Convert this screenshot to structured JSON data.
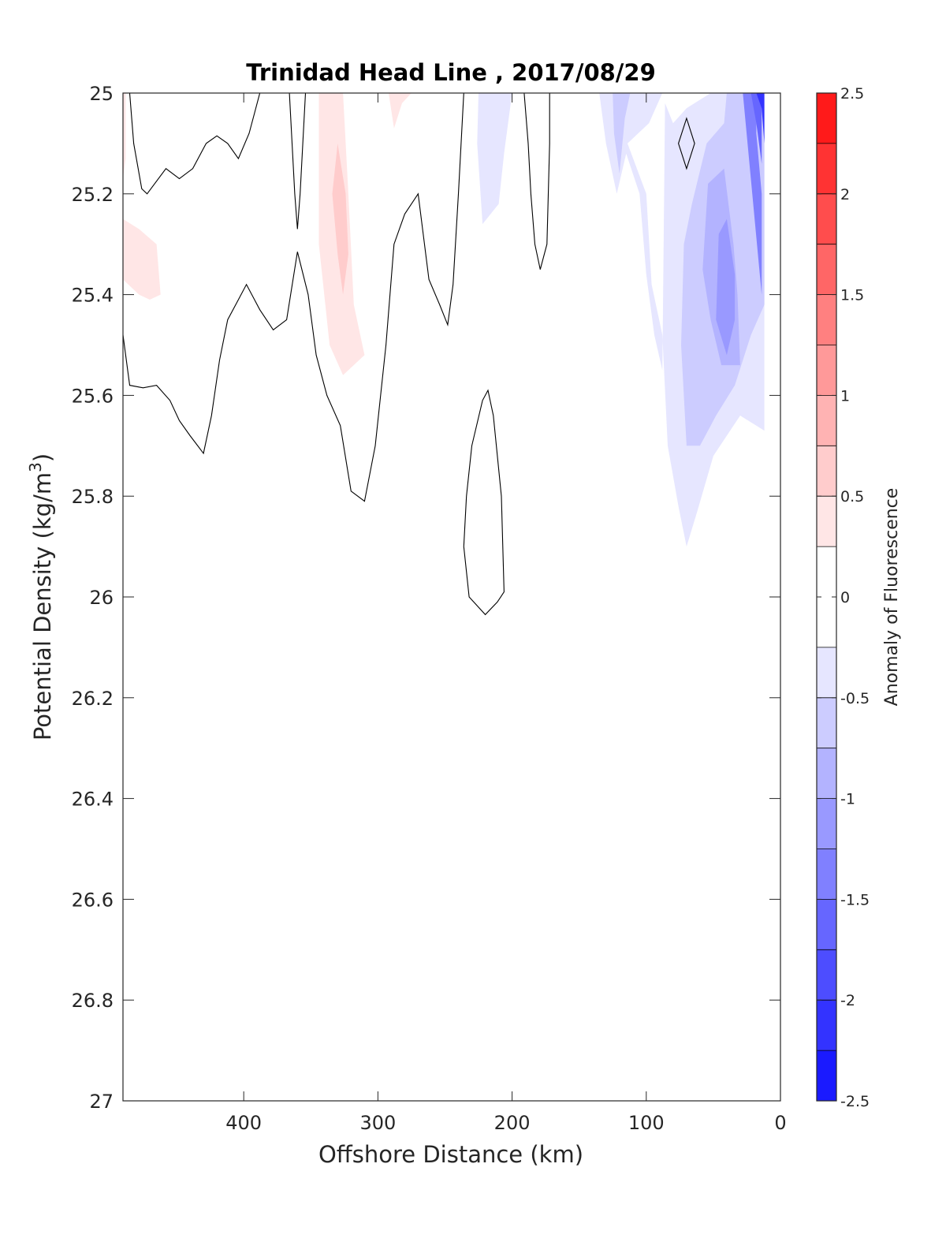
{
  "chart_data": {
    "type": "contour",
    "title": "Trinidad Head Line , 2017/08/29",
    "xlabel": "Offshore Distance (km)",
    "ylabel": "Potential Density (kg/m",
    "ylabel_sup": "3",
    "ylabel_close": ")",
    "colorbar_label": "Anomaly of Fluorescence",
    "xlim": [
      490,
      0
    ],
    "ylim": [
      25,
      27
    ],
    "x_reversed": true,
    "y_reversed": true,
    "xticks": [
      400,
      300,
      200,
      100,
      0
    ],
    "yticks": [
      25,
      25.2,
      25.4,
      25.6,
      25.8,
      26,
      26.2,
      26.4,
      26.6,
      26.8,
      27
    ],
    "ytick_labels": [
      "25",
      "25.2",
      "25.4",
      "25.6",
      "25.8",
      "26",
      "26.2",
      "26.4",
      "26.6",
      "26.8",
      "27"
    ],
    "colorbar": {
      "range": [
        -2.5,
        2.5
      ],
      "levels": [
        -2.5,
        -2.25,
        -2,
        -1.75,
        -1.5,
        -1.25,
        -1,
        -0.75,
        -0.5,
        -0.25,
        0.25,
        0.5,
        0.75,
        1,
        1.25,
        1.5,
        1.75,
        2,
        2.25,
        2.5
      ],
      "ticks": [
        2.5,
        2,
        1.5,
        1,
        0.5,
        0,
        -0.5,
        -1,
        -1.5,
        -2,
        -2.5
      ],
      "tick_labels": [
        "2.5",
        "2",
        "1.5",
        "1",
        "0.5",
        "0",
        "-0.5",
        "-1",
        "-1.5",
        "-2",
        "-2.5"
      ],
      "colors": [
        "#0000ff",
        "#1a1aff",
        "#3333ff",
        "#4d4dff",
        "#6666ff",
        "#8080ff",
        "#9999ff",
        "#b3b3ff",
        "#ccccff",
        "#e6e6ff",
        "#ffffff",
        "#ffe6e6",
        "#ffcccc",
        "#ffb3b3",
        "#ff9999",
        "#ff8080",
        "#ff6666",
        "#ff4d4d",
        "#ff3333",
        "#ff1a1a",
        "#ff0000"
      ]
    },
    "filled_regions": [
      {
        "level": 0.25,
        "color": "#ffe6e6",
        "points": [
          [
            490,
            25
          ],
          [
            488,
            25
          ],
          [
            488,
            25.13
          ],
          [
            490,
            25.17
          ]
        ]
      },
      {
        "level": 0.25,
        "color": "#ffe6e6",
        "points": [
          [
            490,
            25.25
          ],
          [
            478,
            25.27
          ],
          [
            465,
            25.3
          ],
          [
            462,
            25.4
          ],
          [
            470,
            25.41
          ],
          [
            478,
            25.4
          ],
          [
            490,
            25.37
          ]
        ]
      },
      {
        "level": 0.25,
        "color": "#ffe6e6",
        "points": [
          [
            344,
            25
          ],
          [
            326,
            25
          ],
          [
            322,
            25.2
          ],
          [
            318,
            25.42
          ],
          [
            310,
            25.52
          ],
          [
            326,
            25.56
          ],
          [
            336,
            25.5
          ],
          [
            344,
            25.3
          ]
        ]
      },
      {
        "level": 0.25,
        "color": "#ffe6e6",
        "points": [
          [
            292,
            25
          ],
          [
            275,
            25
          ],
          [
            282,
            25.02
          ],
          [
            288,
            25.07
          ]
        ]
      },
      {
        "level": 0.5,
        "color": "#ffcccc",
        "points": [
          [
            334,
            25.2
          ],
          [
            330,
            25.1
          ],
          [
            324,
            25.2
          ],
          [
            322,
            25.32
          ],
          [
            326,
            25.4
          ],
          [
            330,
            25.32
          ]
        ]
      },
      {
        "level": -0.25,
        "color": "#e6e6ff",
        "points": [
          [
            225,
            25
          ],
          [
            200,
            25
          ],
          [
            206,
            25.12
          ],
          [
            210,
            25.22
          ],
          [
            216,
            25.24
          ],
          [
            222,
            25.26
          ],
          [
            226,
            25.1
          ]
        ]
      },
      {
        "level": -0.25,
        "color": "#e6e6ff",
        "points": [
          [
            135,
            25
          ],
          [
            88,
            25
          ],
          [
            98,
            25.06
          ],
          [
            114,
            25.1
          ],
          [
            100,
            25.2
          ],
          [
            96,
            25.38
          ],
          [
            88,
            25.48
          ],
          [
            84,
            25.7
          ],
          [
            76,
            25.82
          ],
          [
            70,
            25.9
          ],
          [
            62,
            25.83
          ],
          [
            50,
            25.72
          ],
          [
            30,
            25.64
          ],
          [
            12,
            25.67
          ],
          [
            12,
            25
          ],
          [
            30,
            25
          ],
          [
            52,
            25
          ],
          [
            70,
            25.03
          ],
          [
            80,
            25.06
          ],
          [
            86,
            25.02
          ],
          [
            88,
            25.55
          ],
          [
            94,
            25.48
          ],
          [
            100,
            25.36
          ],
          [
            105,
            25.2
          ],
          [
            115,
            25.12
          ],
          [
            122,
            25.2
          ],
          [
            130,
            25.1
          ]
        ]
      },
      {
        "level": -0.5,
        "color": "#ccccff",
        "points": [
          [
            125,
            25
          ],
          [
            112,
            25
          ],
          [
            116,
            25.05
          ],
          [
            120,
            25.16
          ],
          [
            124,
            25.08
          ]
        ]
      },
      {
        "level": -0.5,
        "color": "#ccccff",
        "points": [
          [
            58,
            25
          ],
          [
            40,
            25
          ],
          [
            42,
            25.06
          ],
          [
            55,
            25.1
          ],
          [
            66,
            25.22
          ],
          [
            72,
            25.3
          ],
          [
            74,
            25.5
          ],
          [
            70,
            25.7
          ],
          [
            60,
            25.7
          ],
          [
            48,
            25.64
          ],
          [
            34,
            25.58
          ],
          [
            22,
            25.48
          ],
          [
            12,
            25.42
          ],
          [
            12,
            25
          ]
        ]
      },
      {
        "level": -0.75,
        "color": "#b3b3ff",
        "points": [
          [
            54,
            25.18
          ],
          [
            42,
            25.15
          ],
          [
            35,
            25.3
          ],
          [
            32,
            25.4
          ],
          [
            30,
            25.54
          ],
          [
            44,
            25.54
          ],
          [
            52,
            25.45
          ],
          [
            58,
            25.35
          ]
        ]
      },
      {
        "level": -1.0,
        "color": "#9999ff",
        "points": [
          [
            46,
            25.28
          ],
          [
            40,
            25.25
          ],
          [
            34,
            25.36
          ],
          [
            34,
            25.45
          ],
          [
            40,
            25.52
          ],
          [
            48,
            25.45
          ]
        ]
      },
      {
        "level": -1.25,
        "color": "#8080ff",
        "points": [
          [
            28,
            25
          ],
          [
            18,
            25
          ],
          [
            18,
            25.08
          ],
          [
            14,
            25.2
          ],
          [
            14,
            25.4
          ]
        ]
      },
      {
        "level": -1.5,
        "color": "#6666ff",
        "points": [
          [
            22,
            25
          ],
          [
            14,
            25
          ],
          [
            14,
            25.14
          ],
          [
            18,
            25.06
          ]
        ]
      },
      {
        "level": -2.0,
        "color": "#3333ff",
        "points": [
          [
            18,
            25
          ],
          [
            12,
            25
          ],
          [
            12,
            25.1
          ],
          [
            14,
            25.03
          ]
        ]
      }
    ],
    "contour_lines": [
      {
        "level": 0,
        "closed": false,
        "points": [
          [
            490,
            25.48
          ],
          [
            485,
            25.58
          ],
          [
            475,
            25.585
          ],
          [
            465,
            25.58
          ],
          [
            455,
            25.61
          ],
          [
            448,
            25.65
          ],
          [
            440,
            25.68
          ],
          [
            430,
            25.715
          ],
          [
            424,
            25.64
          ],
          [
            418,
            25.53
          ],
          [
            412,
            25.45
          ],
          [
            404,
            25.41
          ],
          [
            398,
            25.38
          ],
          [
            388,
            25.43
          ],
          [
            378,
            25.47
          ],
          [
            368,
            25.45
          ],
          [
            360,
            25.315
          ],
          [
            352,
            25.4
          ],
          [
            346,
            25.52
          ],
          [
            338,
            25.6
          ],
          [
            328,
            25.66
          ],
          [
            320,
            25.79
          ],
          [
            310,
            25.81
          ],
          [
            302,
            25.7
          ],
          [
            294,
            25.5
          ],
          [
            288,
            25.3
          ],
          [
            280,
            25.24
          ],
          [
            270,
            25.2
          ],
          [
            262,
            25.37
          ],
          [
            254,
            25.42
          ],
          [
            248,
            25.46
          ],
          [
            244,
            25.38
          ],
          [
            240,
            25.2
          ],
          [
            236,
            25
          ]
        ]
      },
      {
        "level": 0,
        "closed": false,
        "points": [
          [
            485,
            25
          ],
          [
            482,
            25.1
          ],
          [
            476,
            25.19
          ],
          [
            472,
            25.2
          ],
          [
            458,
            25.15
          ],
          [
            448,
            25.17
          ],
          [
            438,
            25.15
          ],
          [
            428,
            25.1
          ],
          [
            420,
            25.085
          ],
          [
            412,
            25.1
          ],
          [
            404,
            25.13
          ],
          [
            396,
            25.08
          ],
          [
            392,
            25.04
          ],
          [
            388,
            25
          ]
        ]
      },
      {
        "level": 0,
        "closed": false,
        "points": [
          [
            366,
            25
          ],
          [
            364,
            25.1
          ],
          [
            362,
            25.2
          ],
          [
            360,
            25.27
          ],
          [
            358,
            25.2
          ],
          [
            356,
            25.1
          ],
          [
            354,
            25
          ]
        ]
      },
      {
        "level": 0,
        "closed": false,
        "points": [
          [
            191,
            25
          ],
          [
            188,
            25.1
          ],
          [
            186,
            25.2
          ],
          [
            183,
            25.3
          ],
          [
            179,
            25.35
          ],
          [
            174,
            25.3
          ],
          [
            172,
            25.1
          ],
          [
            172,
            25
          ]
        ]
      },
      {
        "level": 0,
        "closed": true,
        "points": [
          [
            218,
            25.59
          ],
          [
            214,
            25.64
          ],
          [
            208,
            25.8
          ],
          [
            206,
            25.99
          ],
          [
            211,
            26.01
          ],
          [
            220,
            26.035
          ],
          [
            232,
            26
          ],
          [
            236,
            25.9
          ],
          [
            234,
            25.8
          ],
          [
            230,
            25.7
          ],
          [
            222,
            25.61
          ]
        ]
      },
      {
        "level": 0,
        "closed": true,
        "points": [
          [
            70,
            25.05
          ],
          [
            64,
            25.1
          ],
          [
            70,
            25.15
          ],
          [
            76,
            25.1
          ]
        ]
      }
    ]
  }
}
